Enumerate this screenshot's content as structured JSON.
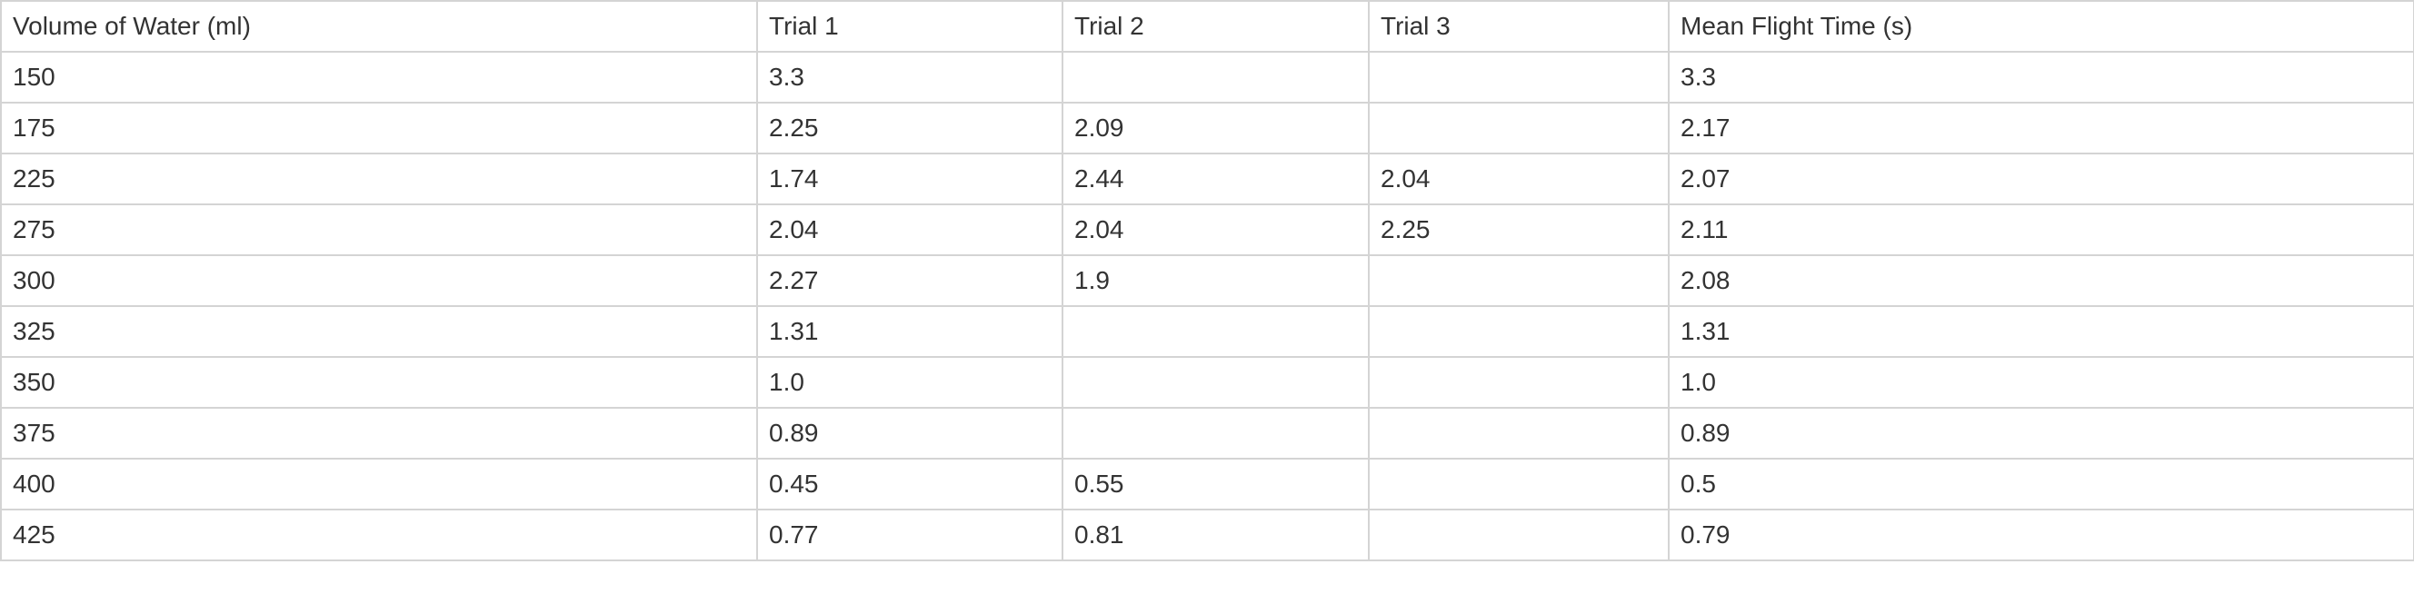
{
  "table": {
    "headers": [
      "Volume of Water (ml)",
      "Trial 1",
      "Trial 2",
      "Trial 3",
      "Mean Flight Time (s)"
    ],
    "rows": [
      [
        "150",
        "3.3",
        "",
        "",
        "3.3"
      ],
      [
        "175",
        "2.25",
        "2.09",
        "",
        "2.17"
      ],
      [
        "225",
        "1.74",
        "2.44",
        "2.04",
        "2.07"
      ],
      [
        "275",
        "2.04",
        "2.04",
        "2.25",
        "2.11"
      ],
      [
        "300",
        "2.27",
        "1.9",
        "",
        "2.08"
      ],
      [
        "325",
        "1.31",
        "",
        "",
        "1.31"
      ],
      [
        "350",
        "1.0",
        "",
        "",
        "1.0"
      ],
      [
        "375",
        "0.89",
        "",
        "",
        "0.89"
      ],
      [
        "400",
        "0.45",
        "0.55",
        "",
        "0.5"
      ],
      [
        "425",
        "0.77",
        "0.81",
        "",
        "0.79"
      ]
    ]
  }
}
